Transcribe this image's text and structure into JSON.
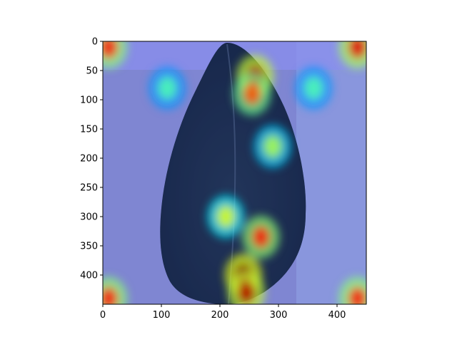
{
  "chart_data": {
    "type": "heatmap",
    "title": "",
    "xlabel": "",
    "ylabel": "",
    "xlim": [
      0,
      450
    ],
    "ylim": [
      450,
      0
    ],
    "y_inverted": true,
    "x_ticks": [
      0,
      100,
      200,
      300,
      400
    ],
    "y_ticks": [
      0,
      50,
      100,
      150,
      200,
      250,
      300,
      350,
      400
    ],
    "grid": false,
    "legend": "none",
    "colormap": "jet",
    "overlay_alpha": 0.45,
    "underlying_image": "leaf photograph",
    "hotspots": [
      {
        "x": 10,
        "y": 10,
        "intensity": 0.85
      },
      {
        "x": 435,
        "y": 10,
        "intensity": 0.9
      },
      {
        "x": 10,
        "y": 440,
        "intensity": 0.85
      },
      {
        "x": 435,
        "y": 440,
        "intensity": 0.85
      },
      {
        "x": 260,
        "y": 60,
        "intensity": 0.95
      },
      {
        "x": 255,
        "y": 90,
        "intensity": 0.8
      },
      {
        "x": 240,
        "y": 400,
        "intensity": 1.0
      },
      {
        "x": 245,
        "y": 430,
        "intensity": 0.95
      },
      {
        "x": 270,
        "y": 335,
        "intensity": 0.85
      },
      {
        "x": 210,
        "y": 300,
        "intensity": 0.6
      },
      {
        "x": 290,
        "y": 180,
        "intensity": 0.55
      },
      {
        "x": 110,
        "y": 80,
        "intensity": 0.45
      },
      {
        "x": 360,
        "y": 80,
        "intensity": 0.45
      }
    ]
  }
}
